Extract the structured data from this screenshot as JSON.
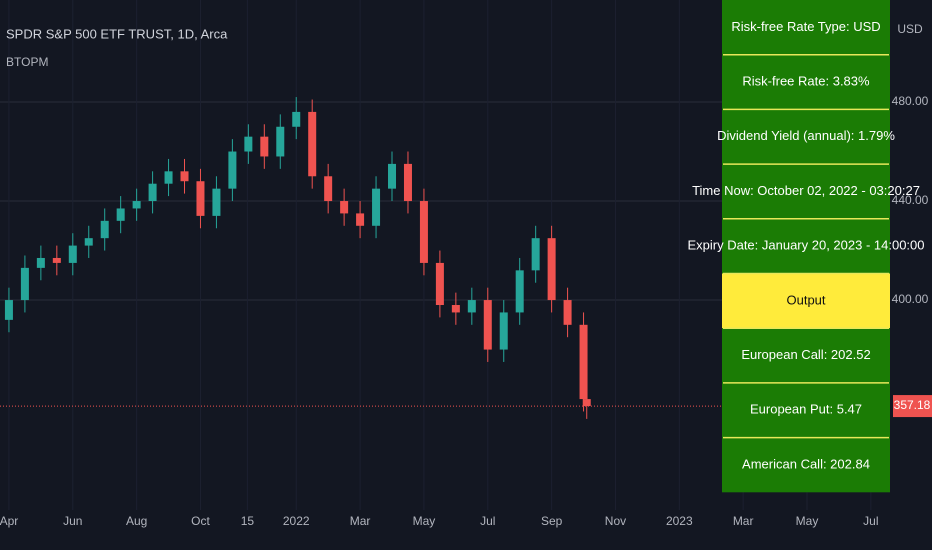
{
  "chart_data": {
    "type": "candlestick",
    "title": "SPDR S&P 500 ETF TRUST, 1D, Arca",
    "subtitle": "BTOPM",
    "y_unit": "USD",
    "x": [
      0,
      0.5,
      1,
      1.5,
      2,
      2.5,
      3,
      3.5,
      4,
      4.5,
      5,
      5.5,
      6,
      6.5,
      7,
      7.5,
      8,
      8.5,
      9,
      9.5,
      10,
      10.5,
      11,
      11.5,
      12,
      12.5,
      13,
      13.5,
      14,
      14.5,
      15,
      15.5,
      16,
      16.5,
      17,
      17.5,
      18,
      18.1
    ],
    "open": [
      392,
      400,
      413,
      417,
      415,
      422,
      425,
      432,
      437,
      440,
      447,
      452,
      448,
      434,
      445,
      460,
      466,
      458,
      470,
      476,
      450,
      440,
      435,
      430,
      445,
      455,
      440,
      415,
      398,
      395,
      400,
      380,
      395,
      412,
      425,
      400,
      390,
      360
    ],
    "high": [
      405,
      418,
      422,
      422,
      427,
      430,
      437,
      442,
      445,
      452,
      457,
      457,
      453,
      450,
      465,
      471,
      471,
      475,
      482,
      481,
      455,
      445,
      440,
      450,
      460,
      460,
      445,
      420,
      403,
      405,
      405,
      400,
      417,
      430,
      430,
      405,
      395,
      363
    ],
    "low": [
      387,
      395,
      408,
      410,
      410,
      417,
      420,
      427,
      432,
      435,
      442,
      443,
      429,
      429,
      440,
      455,
      453,
      453,
      465,
      445,
      435,
      430,
      425,
      425,
      440,
      435,
      410,
      393,
      390,
      390,
      375,
      375,
      390,
      407,
      395,
      385,
      355,
      352
    ],
    "close": [
      400,
      413,
      417,
      415,
      422,
      425,
      432,
      437,
      440,
      447,
      452,
      448,
      434,
      445,
      460,
      466,
      458,
      470,
      476,
      450,
      440,
      435,
      430,
      445,
      455,
      440,
      415,
      398,
      395,
      400,
      380,
      395,
      412,
      425,
      400,
      390,
      360,
      357.18
    ],
    "up_color": "#26a69a",
    "down_color": "#ef5350",
    "last_price": 357.18,
    "xlim": [
      -0.28,
      27.6
    ],
    "xticks": [
      {
        "value": 0,
        "label": "Apr"
      },
      {
        "value": 2,
        "label": "Jun"
      },
      {
        "value": 4,
        "label": "Aug"
      },
      {
        "value": 6,
        "label": "Oct"
      },
      {
        "value": 7.47,
        "label": "15"
      },
      {
        "value": 9,
        "label": "2022"
      },
      {
        "value": 11,
        "label": "Mar"
      },
      {
        "value": 13,
        "label": "May"
      },
      {
        "value": 15,
        "label": "Jul"
      },
      {
        "value": 17,
        "label": "Sep"
      },
      {
        "value": 19,
        "label": "Nov"
      },
      {
        "value": 21,
        "label": "2023"
      },
      {
        "value": 23,
        "label": "Mar"
      },
      {
        "value": 25,
        "label": "May"
      },
      {
        "value": 27,
        "label": "Jul"
      }
    ],
    "ylim": [
      315.2,
      521.2
    ],
    "yticks": [
      {
        "value": 480,
        "label": "480.00"
      },
      {
        "value": 440,
        "label": "440.00"
      },
      {
        "value": 400,
        "label": "400.00"
      }
    ],
    "grid": true
  },
  "table": {
    "rows": [
      "Risk-free Rate Type: USD",
      "Risk-free Rate: 3.83%",
      "Dividend Yield (annual): 1.79%",
      "Time Now: October 02, 2022 - 03:20:27",
      "Expiry Date: January 20, 2023 - 14:00:00",
      "Output",
      "European Call: 202.52",
      "European Put: 5.47",
      "American Call: 202.84"
    ],
    "highlight_row": 5
  }
}
